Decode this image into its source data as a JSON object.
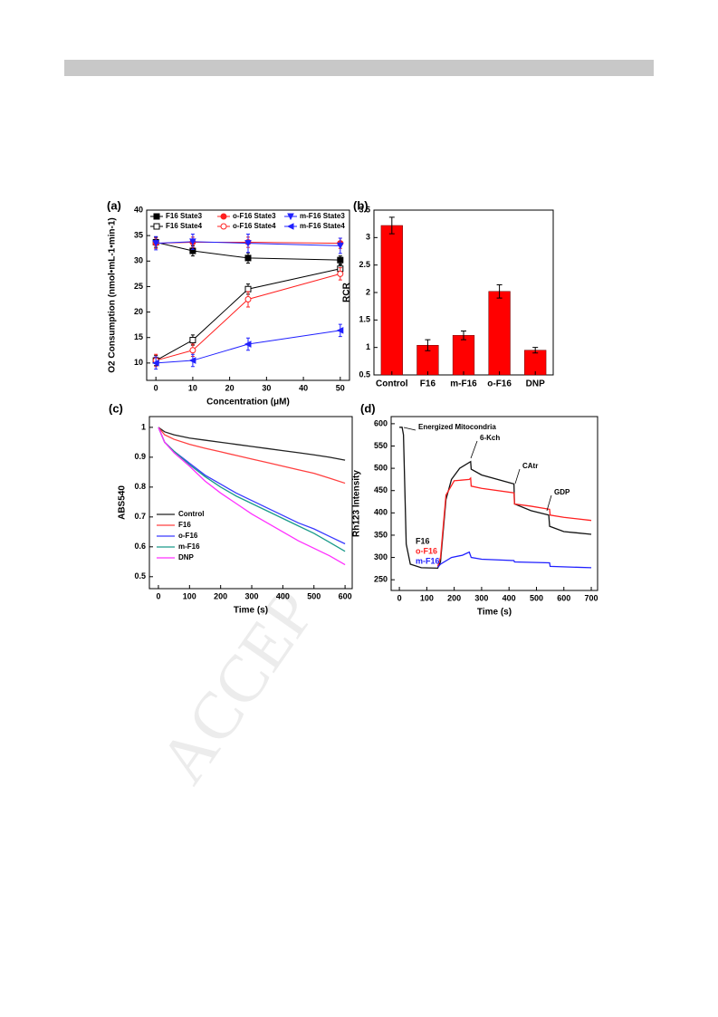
{
  "watermark": "ACCEP",
  "chart_data": [
    {
      "type": "line",
      "label": "(a)",
      "x_label": "Concentration (μM)",
      "y_label": "O2 Consumption (nmol•mL-1•min-1)",
      "x": [
        0,
        10,
        25,
        50
      ],
      "xlim": [
        -2.5,
        52.5
      ],
      "xticks": [
        0,
        10,
        20,
        30,
        40,
        50
      ],
      "ylim": [
        6.6,
        40
      ],
      "yticks": [
        10,
        15,
        20,
        25,
        30,
        35,
        40
      ],
      "legend": "top",
      "series": [
        {
          "name": "F16 State3",
          "color": "#000000",
          "marker": "square",
          "values": [
            33.7,
            32,
            30.6,
            30.2
          ],
          "errors": [
            1.0,
            1.0,
            1.0,
            0.8
          ]
        },
        {
          "name": "F16 State4",
          "color": "#000000",
          "marker": "square-open",
          "values": [
            10.5,
            14.5,
            24.5,
            28.5
          ],
          "errors": [
            1.0,
            1.0,
            1.0,
            0.8
          ]
        },
        {
          "name": "o-F16 State3",
          "color": "#ff2020",
          "marker": "circle",
          "values": [
            33.5,
            33.7,
            33.7,
            33.5
          ],
          "errors": [
            1.0,
            1.0,
            1.0,
            1.0
          ]
        },
        {
          "name": "o-F16 State4",
          "color": "#ff2020",
          "marker": "circle-open",
          "values": [
            10.5,
            12.5,
            22.5,
            27.5
          ],
          "errors": [
            1.2,
            1.2,
            1.5,
            1.2
          ]
        },
        {
          "name": "m-F16 State3",
          "color": "#2020ff",
          "marker": "triangle-down",
          "values": [
            33.5,
            33.8,
            33.5,
            33.0
          ],
          "errors": [
            1.3,
            1.5,
            1.8,
            1.5
          ]
        },
        {
          "name": "m-F16 State4",
          "color": "#2020ff",
          "marker": "triangle-left",
          "values": [
            10,
            10.5,
            13.7,
            16.4
          ],
          "errors": [
            1.2,
            1.2,
            1.2,
            1.2
          ]
        }
      ]
    },
    {
      "type": "bar",
      "label": "(b)",
      "y_label": "RCR",
      "categories": [
        "Control",
        "F16",
        "m-F16",
        "o-F16",
        "DNP"
      ],
      "values": [
        3.22,
        1.04,
        1.22,
        2.02,
        0.95
      ],
      "errors": [
        0.15,
        0.1,
        0.08,
        0.12,
        0.05
      ],
      "color": "#ff0000",
      "ylim": [
        0.5,
        3.5
      ],
      "yticks": [
        0.5,
        1.0,
        1.5,
        2.0,
        2.5,
        3.0,
        3.5
      ]
    },
    {
      "type": "line",
      "label": "(c)",
      "x_label": "Time (s)",
      "y_label": "ABS540",
      "x": [
        0,
        20,
        50,
        100,
        150,
        200,
        250,
        300,
        350,
        400,
        450,
        500,
        550,
        600
      ],
      "xlim": [
        -29,
        623
      ],
      "xticks": [
        0,
        100,
        200,
        300,
        400,
        500,
        600
      ],
      "ylim": [
        0.46,
        1.036
      ],
      "yticks": [
        0.5,
        0.6,
        0.7,
        0.8,
        0.9,
        1.0
      ],
      "legend": "lower left",
      "series": [
        {
          "name": "Control",
          "color": "#222222",
          "values": [
            1.0,
            0.985,
            0.975,
            0.964,
            0.957,
            0.95,
            0.943,
            0.936,
            0.929,
            0.922,
            0.915,
            0.908,
            0.9,
            0.89
          ]
        },
        {
          "name": "F16",
          "color": "#ff4040",
          "values": [
            1.0,
            0.975,
            0.96,
            0.943,
            0.93,
            0.918,
            0.906,
            0.894,
            0.882,
            0.87,
            0.858,
            0.846,
            0.83,
            0.813
          ]
        },
        {
          "name": "o-F16",
          "color": "#3a3aff",
          "values": [
            1.0,
            0.95,
            0.92,
            0.88,
            0.84,
            0.81,
            0.78,
            0.755,
            0.73,
            0.705,
            0.68,
            0.66,
            0.635,
            0.61
          ]
        },
        {
          "name": "m-F16",
          "color": "#1a9a8a",
          "values": [
            1.0,
            0.95,
            0.92,
            0.875,
            0.835,
            0.8,
            0.77,
            0.745,
            0.72,
            0.695,
            0.67,
            0.645,
            0.615,
            0.585
          ]
        },
        {
          "name": "DNP",
          "color": "#ff30ff",
          "values": [
            1.0,
            0.95,
            0.915,
            0.87,
            0.82,
            0.78,
            0.745,
            0.71,
            0.68,
            0.65,
            0.62,
            0.595,
            0.57,
            0.54
          ]
        }
      ]
    },
    {
      "type": "line",
      "label": "(d)",
      "x_label": "Time (s)",
      "y_label": "Rh123 Intensity",
      "xlim": [
        -30,
        723
      ],
      "xticks": [
        0,
        100,
        200,
        300,
        400,
        500,
        600,
        700
      ],
      "ylim": [
        226,
        616
      ],
      "yticks": [
        250,
        300,
        350,
        400,
        450,
        500,
        550,
        600
      ],
      "legend": "left",
      "annotations": [
        "Energized Mitocondria",
        "6-Kch",
        "CAtr",
        "GDP"
      ],
      "series": [
        {
          "name": "F16",
          "color": "#111111",
          "x": [
            0,
            10,
            15,
            25,
            40,
            80,
            140,
            150,
            170,
            190,
            220,
            260,
            262,
            300,
            400,
            418,
            420,
            480,
            545,
            548,
            600,
            700
          ],
          "values": [
            592,
            592,
            575,
            330,
            285,
            277,
            276,
            290,
            430,
            475,
            500,
            515,
            498,
            485,
            468,
            465,
            420,
            405,
            395,
            370,
            358,
            352
          ]
        },
        {
          "name": "o-F16",
          "color": "#ff2020",
          "x": [
            140,
            150,
            170,
            200,
            255,
            260,
            262,
            300,
            418,
            420,
            480,
            548,
            550,
            600,
            700
          ],
          "values": [
            280,
            300,
            440,
            472,
            475,
            478,
            460,
            455,
            445,
            420,
            415,
            408,
            395,
            390,
            383
          ]
        },
        {
          "name": "m-F16",
          "color": "#2020ff",
          "x": [
            140,
            150,
            190,
            230,
            255,
            262,
            300,
            418,
            420,
            548,
            550,
            700
          ],
          "values": [
            278,
            285,
            300,
            305,
            312,
            300,
            296,
            293,
            290,
            288,
            280,
            277
          ]
        }
      ]
    }
  ]
}
